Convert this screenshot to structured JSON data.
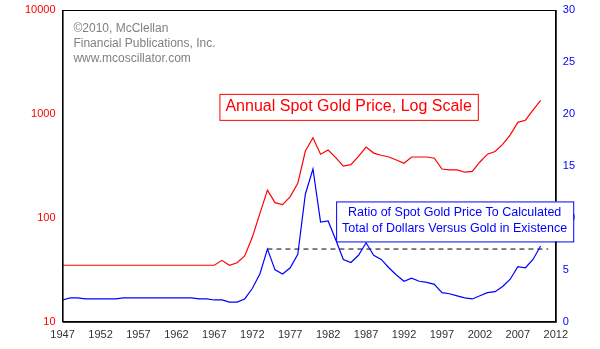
{
  "chart_data": {
    "type": "line",
    "x": [
      1947,
      1948,
      1949,
      1950,
      1951,
      1952,
      1953,
      1954,
      1955,
      1956,
      1957,
      1958,
      1959,
      1960,
      1961,
      1962,
      1963,
      1964,
      1965,
      1966,
      1967,
      1968,
      1969,
      1970,
      1971,
      1972,
      1973,
      1974,
      1975,
      1976,
      1977,
      1978,
      1979,
      1980,
      1981,
      1982,
      1983,
      1984,
      1985,
      1986,
      1987,
      1988,
      1989,
      1990,
      1991,
      1992,
      1993,
      1994,
      1995,
      1996,
      1997,
      1998,
      1999,
      2000,
      2001,
      2002,
      2003,
      2004,
      2005,
      2006,
      2007,
      2008,
      2009,
      2010
    ],
    "series": [
      {
        "color": "#ff0000",
        "axis": "y",
        "values": [
          35,
          35,
          35,
          35,
          35,
          35,
          35,
          35,
          35,
          35,
          35,
          35,
          35,
          35,
          35,
          35,
          35,
          35,
          35,
          35,
          35,
          39,
          35,
          37,
          43,
          65,
          110,
          185,
          140,
          134,
          160,
          215,
          440,
          590,
          410,
          450,
          380,
          315,
          325,
          390,
          480,
          420,
          400,
          385,
          360,
          335,
          385,
          385,
          385,
          375,
          295,
          290,
          290,
          275,
          280,
          345,
          410,
          435,
          510,
          630,
          830,
          870,
          1090,
          1350
        ]
      },
      {
        "color": "#0000ff",
        "axis": "y2",
        "values": [
          2.1,
          2.3,
          2.3,
          2.2,
          2.2,
          2.2,
          2.2,
          2.2,
          2.3,
          2.3,
          2.3,
          2.3,
          2.3,
          2.3,
          2.3,
          2.3,
          2.3,
          2.3,
          2.2,
          2.2,
          2.1,
          2.1,
          1.9,
          1.9,
          2.2,
          3.2,
          4.6,
          7.0,
          5.0,
          4.6,
          5.2,
          6.5,
          12.3,
          14.7,
          9.6,
          9.7,
          7.9,
          6.0,
          5.7,
          6.4,
          7.6,
          6.4,
          6.0,
          5.2,
          4.5,
          3.9,
          4.2,
          3.9,
          3.8,
          3.6,
          2.8,
          2.7,
          2.5,
          2.3,
          2.2,
          2.5,
          2.8,
          2.9,
          3.4,
          4.1,
          5.3,
          5.2,
          6.0,
          7.3
        ]
      }
    ],
    "reference_line": {
      "value": 7,
      "x": [
        1974,
        2011
      ],
      "axis": "y2",
      "line_style": "dashed",
      "color": "#000000"
    },
    "xlim": [
      1947,
      2012
    ],
    "xticks": [
      1947,
      1952,
      1957,
      1962,
      1967,
      1972,
      1977,
      1982,
      1987,
      1992,
      1997,
      2002,
      2007,
      2012
    ],
    "ylim": [
      10,
      10000
    ],
    "yticks": [
      10,
      100,
      1000,
      10000
    ],
    "log": "y",
    "y2lim": [
      0,
      30
    ],
    "y2ticks": [
      0,
      5,
      10,
      15,
      20,
      25,
      30
    ],
    "grid": false,
    "annotations": [
      {
        "text": [
          "©2010, McClellan",
          "Financial Publications, Inc.",
          "www.mcoscillator.com"
        ],
        "color": "#808080"
      },
      {
        "text": [
          "Annual Spot Gold Price, Log Scale"
        ],
        "color": "#ff0000"
      },
      {
        "text": [
          "Ratio of Spot Gold Price To Calculated",
          "Total of Dollars Versus Gold in Existence"
        ],
        "color": "#0000ff"
      }
    ]
  }
}
